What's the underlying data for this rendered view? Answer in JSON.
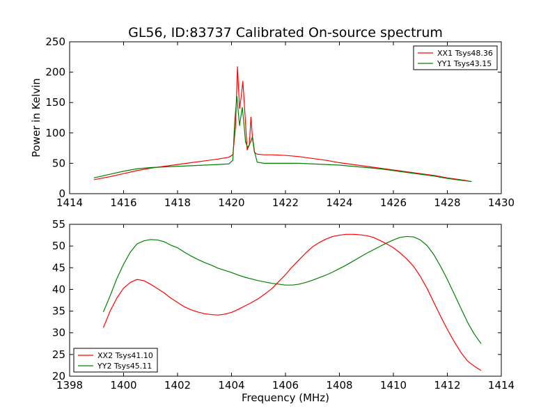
{
  "figure": {
    "title": "GL56, ID:83737 Calibrated On-source spectrum",
    "background": "#ffffff"
  },
  "chart_data": [
    {
      "type": "line",
      "title": "GL56, ID:83737 Calibrated On-source spectrum",
      "xlabel": "",
      "ylabel": "Power in Kelvin",
      "xlim": [
        1414,
        1430
      ],
      "ylim": [
        0,
        250
      ],
      "xticks": [
        1414,
        1416,
        1418,
        1420,
        1422,
        1424,
        1426,
        1428,
        1430
      ],
      "yticks": [
        0,
        50,
        100,
        150,
        200,
        250
      ],
      "grid": false,
      "legend_position": "top-right",
      "series": [
        {
          "name": "XX1 Tsys48.36",
          "color": "#ff0000",
          "x": [
            1414.9,
            1415.5,
            1416.0,
            1416.5,
            1417.0,
            1417.5,
            1418.0,
            1418.5,
            1419.0,
            1419.5,
            1419.9,
            1420.05,
            1420.15,
            1420.22,
            1420.3,
            1420.36,
            1420.42,
            1420.5,
            1420.58,
            1420.66,
            1420.72,
            1420.78,
            1420.85,
            1420.95,
            1421.2,
            1421.5,
            1422.0,
            1422.5,
            1423.0,
            1423.5,
            1424.0,
            1424.5,
            1425.0,
            1425.5,
            1426.0,
            1426.5,
            1427.0,
            1427.5,
            1428.0,
            1428.5,
            1428.9
          ],
          "y": [
            23,
            28,
            33,
            38,
            42,
            45,
            48,
            51,
            54,
            57,
            60,
            64,
            110,
            209,
            140,
            160,
            185,
            130,
            72,
            80,
            126,
            90,
            68,
            65,
            64,
            64,
            63,
            61,
            58,
            55,
            51,
            48,
            45,
            42,
            39,
            36,
            33,
            30,
            26,
            23,
            20
          ]
        },
        {
          "name": "YY1 Tsys43.15",
          "color": "#008000",
          "x": [
            1414.9,
            1415.5,
            1416.0,
            1416.5,
            1417.0,
            1417.5,
            1418.0,
            1418.5,
            1419.0,
            1419.5,
            1419.9,
            1420.05,
            1420.12,
            1420.2,
            1420.26,
            1420.3,
            1420.34,
            1420.4,
            1420.46,
            1420.52,
            1420.6,
            1420.7,
            1420.78,
            1420.85,
            1420.95,
            1421.2,
            1421.5,
            1422.0,
            1422.5,
            1423.0,
            1423.5,
            1424.0,
            1424.5,
            1425.0,
            1425.5,
            1426.0,
            1426.5,
            1427.0,
            1427.5,
            1428.0,
            1428.5,
            1428.9
          ],
          "y": [
            26,
            32,
            37,
            41,
            43,
            44,
            45,
            46,
            47,
            48,
            49,
            55,
            120,
            160,
            130,
            112,
            125,
            142,
            115,
            85,
            76,
            84,
            94,
            70,
            52,
            50,
            50,
            50,
            50,
            49,
            48,
            47,
            45,
            43,
            41,
            38,
            35,
            32,
            29,
            25,
            22,
            20
          ]
        }
      ]
    },
    {
      "type": "line",
      "title": "",
      "xlabel": "Frequency (MHz)",
      "ylabel": "",
      "xlim": [
        1398,
        1414
      ],
      "ylim": [
        20,
        55
      ],
      "xticks": [
        1398,
        1400,
        1402,
        1404,
        1406,
        1408,
        1410,
        1412,
        1414
      ],
      "yticks": [
        20,
        25,
        30,
        35,
        40,
        45,
        50,
        55
      ],
      "grid": false,
      "legend_position": "bottom-left",
      "series": [
        {
          "name": "XX2 Tsys41.10",
          "color": "#ff0000",
          "x": [
            1399.25,
            1399.5,
            1399.75,
            1400.0,
            1400.25,
            1400.5,
            1400.75,
            1401.0,
            1401.25,
            1401.5,
            1401.75,
            1402.0,
            1402.25,
            1402.5,
            1402.75,
            1403.0,
            1403.25,
            1403.5,
            1403.75,
            1404.0,
            1404.25,
            1404.5,
            1404.75,
            1405.0,
            1405.25,
            1405.5,
            1405.75,
            1406.0,
            1406.25,
            1406.5,
            1406.75,
            1407.0,
            1407.25,
            1407.5,
            1407.75,
            1408.0,
            1408.25,
            1408.5,
            1408.75,
            1409.0,
            1409.25,
            1409.5,
            1409.75,
            1410.0,
            1410.25,
            1410.5,
            1410.75,
            1411.0,
            1411.25,
            1411.5,
            1411.75,
            1412.0,
            1412.25,
            1412.5,
            1412.75,
            1413.0,
            1413.25
          ],
          "y": [
            31.2,
            35.0,
            38.0,
            40.3,
            41.6,
            42.3,
            42.0,
            41.2,
            40.2,
            39.2,
            38.0,
            37.0,
            36.0,
            35.3,
            34.8,
            34.4,
            34.2,
            34.1,
            34.3,
            34.7,
            35.4,
            36.2,
            37.0,
            37.9,
            39.0,
            40.2,
            41.8,
            43.4,
            45.2,
            46.8,
            48.4,
            49.8,
            50.8,
            51.6,
            52.2,
            52.5,
            52.7,
            52.7,
            52.6,
            52.4,
            52.0,
            51.3,
            50.5,
            49.6,
            48.4,
            47.0,
            45.3,
            43.0,
            40.2,
            37.0,
            33.8,
            30.8,
            28.0,
            25.5,
            23.5,
            22.3,
            21.3
          ]
        },
        {
          "name": "YY2 Tsys45.11",
          "color": "#008000",
          "x": [
            1399.25,
            1399.5,
            1399.75,
            1400.0,
            1400.25,
            1400.5,
            1400.75,
            1401.0,
            1401.25,
            1401.5,
            1401.75,
            1402.0,
            1402.25,
            1402.5,
            1402.75,
            1403.0,
            1403.25,
            1403.5,
            1403.75,
            1404.0,
            1404.25,
            1404.5,
            1404.75,
            1405.0,
            1405.25,
            1405.5,
            1405.75,
            1406.0,
            1406.25,
            1406.5,
            1406.75,
            1407.0,
            1407.25,
            1407.5,
            1407.75,
            1408.0,
            1408.25,
            1408.5,
            1408.75,
            1409.0,
            1409.25,
            1409.5,
            1409.75,
            1410.0,
            1410.25,
            1410.5,
            1410.75,
            1411.0,
            1411.25,
            1411.5,
            1411.75,
            1412.0,
            1412.25,
            1412.5,
            1412.75,
            1413.0,
            1413.25
          ],
          "y": [
            34.8,
            38.5,
            42.5,
            45.8,
            48.6,
            50.5,
            51.2,
            51.5,
            51.4,
            51.0,
            50.2,
            49.6,
            48.6,
            47.7,
            46.9,
            46.2,
            45.6,
            44.9,
            44.4,
            43.9,
            43.3,
            42.8,
            42.4,
            42.0,
            41.7,
            41.4,
            41.2,
            41.0,
            41.0,
            41.2,
            41.6,
            42.1,
            42.7,
            43.3,
            44.0,
            44.8,
            45.6,
            46.5,
            47.4,
            48.3,
            49.1,
            49.9,
            50.7,
            51.4,
            52.0,
            52.2,
            52.1,
            51.4,
            50.1,
            48.0,
            45.3,
            42.3,
            39.0,
            35.7,
            32.4,
            29.7,
            27.5
          ]
        }
      ]
    }
  ]
}
